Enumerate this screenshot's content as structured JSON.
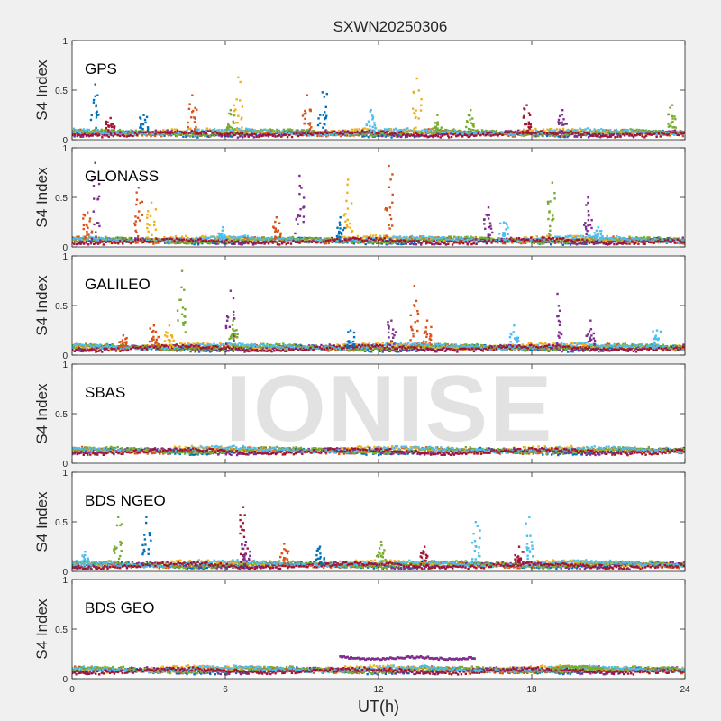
{
  "figure": {
    "title": "SXWN20250306",
    "xlabel": "UT(h)",
    "watermark": "IONISE"
  },
  "colors": {
    "series": [
      "#0072bd",
      "#d95319",
      "#edb120",
      "#7e2f8e",
      "#77ac30",
      "#4dbeee",
      "#a2142f"
    ],
    "panel_background": "#ffffff",
    "figure_background": "#f0f0f0"
  },
  "chart_data": [
    {
      "type": "scatter",
      "title": "GPS",
      "ylabel": "S4 Index",
      "xlim": [
        0,
        24
      ],
      "ylim": [
        0,
        1
      ],
      "xticks": [
        0,
        6,
        12,
        18,
        24
      ],
      "yticks": [
        0,
        0.5,
        1
      ],
      "ytick_labels": [
        "0",
        "0.5",
        "1"
      ],
      "grid": false,
      "baseline": 0.06,
      "spikes": [
        {
          "x": 0.9,
          "y": 0.56,
          "color": 0
        },
        {
          "x": 1.5,
          "y": 0.22,
          "color": 6
        },
        {
          "x": 2.8,
          "y": 0.25,
          "color": 0
        },
        {
          "x": 4.7,
          "y": 0.45,
          "color": 1
        },
        {
          "x": 6.5,
          "y": 0.63,
          "color": 2
        },
        {
          "x": 6.2,
          "y": 0.3,
          "color": 4
        },
        {
          "x": 9.8,
          "y": 0.48,
          "color": 0
        },
        {
          "x": 9.2,
          "y": 0.45,
          "color": 1
        },
        {
          "x": 11.7,
          "y": 0.3,
          "color": 5
        },
        {
          "x": 13.5,
          "y": 0.62,
          "color": 2
        },
        {
          "x": 14.3,
          "y": 0.25,
          "color": 4
        },
        {
          "x": 15.6,
          "y": 0.3,
          "color": 4
        },
        {
          "x": 17.8,
          "y": 0.35,
          "color": 6
        },
        {
          "x": 19.2,
          "y": 0.3,
          "color": 3
        },
        {
          "x": 23.5,
          "y": 0.35,
          "color": 4
        }
      ]
    },
    {
      "type": "scatter",
      "title": "GLONASS",
      "ylabel": "S4 Index",
      "xlim": [
        0,
        24
      ],
      "ylim": [
        0,
        1
      ],
      "xticks": [
        0,
        6,
        12,
        18,
        24
      ],
      "yticks": [
        0,
        0.5,
        1
      ],
      "ytick_labels": [
        "0",
        "0.5",
        "1"
      ],
      "grid": false,
      "baseline": 0.06,
      "spikes": [
        {
          "x": 0.9,
          "y": 0.85,
          "color": 3
        },
        {
          "x": 0.6,
          "y": 0.35,
          "color": 1
        },
        {
          "x": 2.6,
          "y": 0.6,
          "color": 1
        },
        {
          "x": 3.1,
          "y": 0.45,
          "color": 2
        },
        {
          "x": 5.9,
          "y": 0.2,
          "color": 5
        },
        {
          "x": 8.0,
          "y": 0.3,
          "color": 1
        },
        {
          "x": 8.9,
          "y": 0.72,
          "color": 3
        },
        {
          "x": 10.8,
          "y": 0.68,
          "color": 2
        },
        {
          "x": 12.4,
          "y": 0.82,
          "color": 1
        },
        {
          "x": 10.5,
          "y": 0.3,
          "color": 0
        },
        {
          "x": 16.3,
          "y": 0.4,
          "color": 3
        },
        {
          "x": 16.9,
          "y": 0.25,
          "color": 5
        },
        {
          "x": 18.8,
          "y": 0.65,
          "color": 4
        },
        {
          "x": 20.2,
          "y": 0.5,
          "color": 3
        },
        {
          "x": 20.6,
          "y": 0.2,
          "color": 5
        }
      ]
    },
    {
      "type": "scatter",
      "title": "GALILEO",
      "ylabel": "S4 Index",
      "xlim": [
        0,
        24
      ],
      "ylim": [
        0,
        1
      ],
      "xticks": [
        0,
        6,
        12,
        18,
        24
      ],
      "yticks": [
        0,
        0.5,
        1
      ],
      "ytick_labels": [
        "0",
        "0.5",
        "1"
      ],
      "grid": false,
      "baseline": 0.07,
      "spikes": [
        {
          "x": 2.0,
          "y": 0.2,
          "color": 1
        },
        {
          "x": 3.2,
          "y": 0.3,
          "color": 1
        },
        {
          "x": 4.3,
          "y": 0.85,
          "color": 4
        },
        {
          "x": 3.8,
          "y": 0.3,
          "color": 2
        },
        {
          "x": 6.2,
          "y": 0.65,
          "color": 3
        },
        {
          "x": 6.3,
          "y": 0.35,
          "color": 4
        },
        {
          "x": 10.9,
          "y": 0.25,
          "color": 0
        },
        {
          "x": 12.5,
          "y": 0.35,
          "color": 3
        },
        {
          "x": 13.4,
          "y": 0.7,
          "color": 1
        },
        {
          "x": 13.9,
          "y": 0.35,
          "color": 1
        },
        {
          "x": 17.3,
          "y": 0.3,
          "color": 5
        },
        {
          "x": 19.0,
          "y": 0.62,
          "color": 3
        },
        {
          "x": 20.3,
          "y": 0.35,
          "color": 3
        },
        {
          "x": 22.9,
          "y": 0.25,
          "color": 5
        }
      ]
    },
    {
      "type": "scatter",
      "title": "SBAS",
      "ylabel": "S4 Index",
      "xlim": [
        0,
        24
      ],
      "ylim": [
        0,
        1
      ],
      "xticks": [
        0,
        6,
        12,
        18,
        24
      ],
      "yticks": [
        0,
        0.5,
        1
      ],
      "ytick_labels": [
        "0",
        "0.5",
        "1"
      ],
      "grid": false,
      "baseline": 0.12,
      "spikes": []
    },
    {
      "type": "scatter",
      "title": "BDS NGEO",
      "ylabel": "S4 Index",
      "xlim": [
        0,
        24
      ],
      "ylim": [
        0,
        1
      ],
      "xticks": [
        0,
        6,
        12,
        18,
        24
      ],
      "yticks": [
        0,
        0.5,
        1
      ],
      "ytick_labels": [
        "0",
        "0.5",
        "1"
      ],
      "grid": false,
      "baseline": 0.06,
      "spikes": [
        {
          "x": 1.8,
          "y": 0.55,
          "color": 4
        },
        {
          "x": 2.9,
          "y": 0.55,
          "color": 0
        },
        {
          "x": 6.7,
          "y": 0.65,
          "color": 6
        },
        {
          "x": 6.8,
          "y": 0.3,
          "color": 3
        },
        {
          "x": 8.3,
          "y": 0.28,
          "color": 1
        },
        {
          "x": 9.7,
          "y": 0.25,
          "color": 0
        },
        {
          "x": 12.1,
          "y": 0.3,
          "color": 4
        },
        {
          "x": 13.8,
          "y": 0.25,
          "color": 6
        },
        {
          "x": 15.8,
          "y": 0.5,
          "color": 5
        },
        {
          "x": 17.9,
          "y": 0.55,
          "color": 5
        },
        {
          "x": 17.5,
          "y": 0.25,
          "color": 6
        },
        {
          "x": 0.5,
          "y": 0.2,
          "color": 5
        }
      ]
    },
    {
      "type": "scatter",
      "title": "BDS GEO",
      "ylabel": "S4 Index",
      "xlim": [
        0,
        24
      ],
      "ylim": [
        0,
        1
      ],
      "xticks": [
        0,
        6,
        12,
        18,
        24
      ],
      "yticks": [
        0,
        0.5,
        1
      ],
      "ytick_labels": [
        "0",
        "0.5",
        "1"
      ],
      "grid": false,
      "baseline": 0.08,
      "spikes": [],
      "bands": [
        {
          "x_start": 10.5,
          "x_end": 15.8,
          "y": 0.21,
          "color": 3
        },
        {
          "x_start": 18.8,
          "x_end": 20.8,
          "y": 0.11,
          "color": 4
        }
      ]
    }
  ]
}
